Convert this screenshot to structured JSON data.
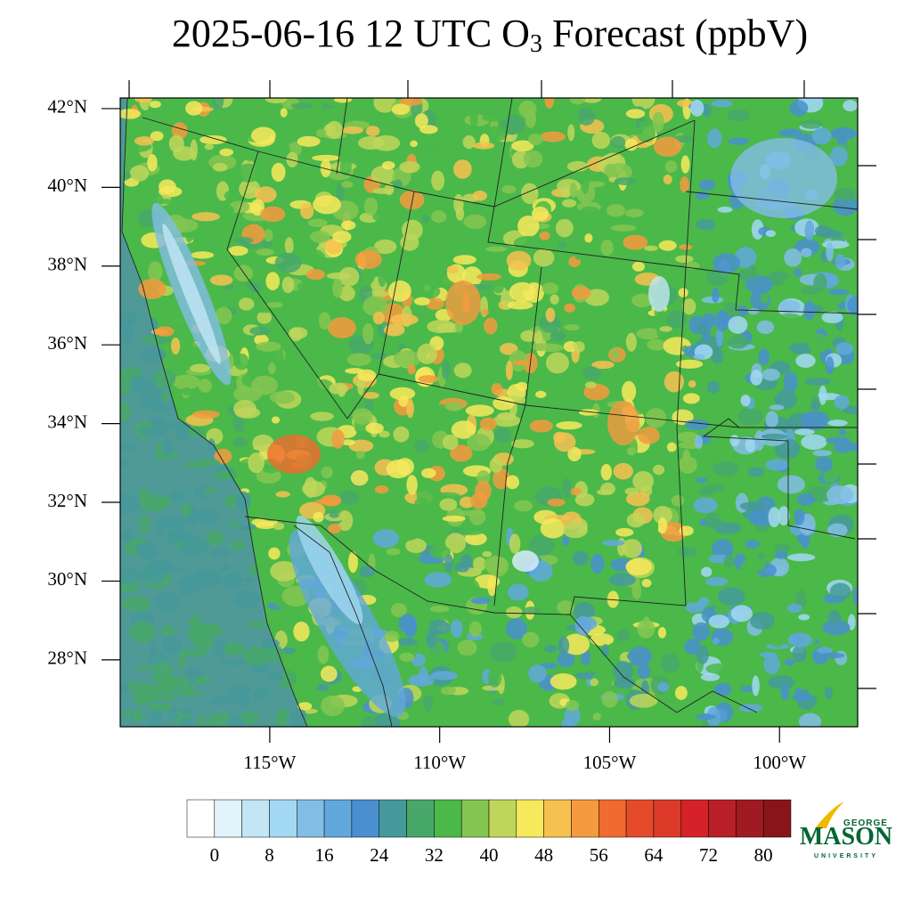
{
  "title": {
    "main": "2025-06-16 12 UTC O",
    "subscript": "3",
    "rest": " Forecast (ppbV)"
  },
  "map": {
    "lat_range": [
      26.3,
      42.27
    ],
    "lon_range": [
      -119.4,
      -97.7
    ],
    "lat_ticks": [
      {
        "value": 42,
        "label": "42°N"
      },
      {
        "value": 40,
        "label": "40°N"
      },
      {
        "value": 38,
        "label": "38°N"
      },
      {
        "value": 36,
        "label": "36°N"
      },
      {
        "value": 34,
        "label": "34°N"
      },
      {
        "value": 32,
        "label": "32°N"
      },
      {
        "value": 30,
        "label": "30°N"
      },
      {
        "value": 28,
        "label": "28°N"
      }
    ],
    "lon_ticks": [
      {
        "value": -115,
        "label": "115°W"
      },
      {
        "value": -110,
        "label": "110°W"
      },
      {
        "value": -105,
        "label": "105°W"
      },
      {
        "value": -100,
        "label": "100°W"
      }
    ]
  },
  "colorbar": {
    "colors": [
      "#ffffff",
      "#e1f3fb",
      "#c3e6f7",
      "#a2d8f2",
      "#82bde6",
      "#62a8dc",
      "#4a8fcf",
      "#45999a",
      "#48a86a",
      "#4bb84a",
      "#84c551",
      "#c0d65a",
      "#f7e95c",
      "#f7c150",
      "#f59a3e",
      "#f06b2d",
      "#e54a2b",
      "#dd3a2a",
      "#d42228",
      "#b91f26",
      "#a01a22",
      "#8a1519"
    ],
    "levels": [
      0,
      4,
      8,
      12,
      16,
      20,
      24,
      28,
      32,
      36,
      40,
      44,
      48,
      52,
      56,
      60,
      64,
      68,
      72,
      76,
      80
    ],
    "tick_labels": [
      0,
      8,
      16,
      24,
      32,
      40,
      48,
      56,
      64,
      72,
      80
    ]
  },
  "logo": {
    "top": "GEORGE",
    "main": "MASON",
    "bottom": "UNIVERSITY"
  }
}
